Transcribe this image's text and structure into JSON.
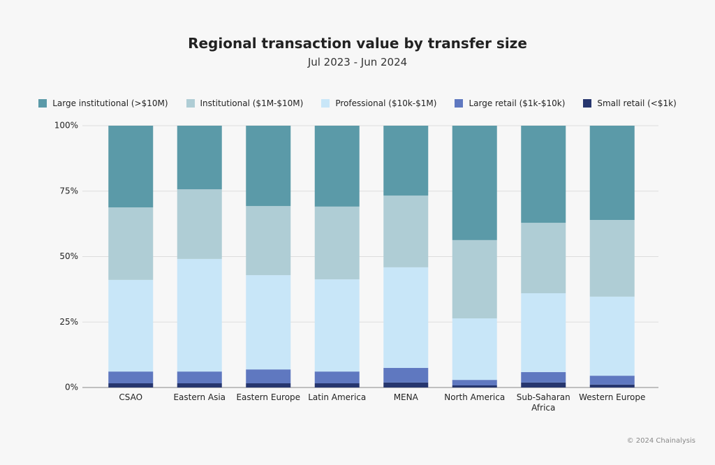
{
  "chart_data": {
    "type": "stacked_bar",
    "title": "Regional transaction value by transfer size",
    "subtitle": "Jul 2023 - Jun 2024",
    "categories": [
      "CSAO",
      "Eastern Asia",
      "Eastern Europe",
      "Latin America",
      "MENA",
      "North America",
      "Sub-Saharan Africa",
      "Western Europe"
    ],
    "series": [
      {
        "name": "Small retail (<$1k)",
        "color": "#26366e",
        "values": [
          1.6,
          1.6,
          1.6,
          1.6,
          1.9,
          0.8,
          1.9,
          1.1
        ]
      },
      {
        "name": "Large retail ($1k-$10k)",
        "color": "#5f78c0",
        "values": [
          4.5,
          4.5,
          5.3,
          4.5,
          5.6,
          2.1,
          4.0,
          3.4
        ]
      },
      {
        "name": "Professional ($10k-$1M)",
        "color": "#c8e6f8",
        "values": [
          35.0,
          43.0,
          36.0,
          35.2,
          38.4,
          23.5,
          30.1,
          30.2
        ]
      },
      {
        "name": "Institutional ($1M-$10M)",
        "color": "#afcdd5",
        "values": [
          27.7,
          26.6,
          26.4,
          27.8,
          27.4,
          29.9,
          26.9,
          29.3
        ]
      },
      {
        "name": "Large institutional (>$10M)",
        "color": "#5b9aa8",
        "values": [
          31.2,
          24.3,
          30.7,
          30.9,
          26.7,
          43.7,
          37.1,
          36.0
        ]
      }
    ],
    "ylim": [
      0,
      100
    ],
    "yticks": [
      {
        "value": 0,
        "label": "0%"
      },
      {
        "value": 25,
        "label": "25%"
      },
      {
        "value": 50,
        "label": "50%"
      },
      {
        "value": 75,
        "label": "75%"
      },
      {
        "value": 100,
        "label": "100%"
      }
    ],
    "grid": true,
    "legend_order": [
      4,
      3,
      2,
      1,
      0
    ]
  },
  "footer": "© 2024 Chainalysis"
}
